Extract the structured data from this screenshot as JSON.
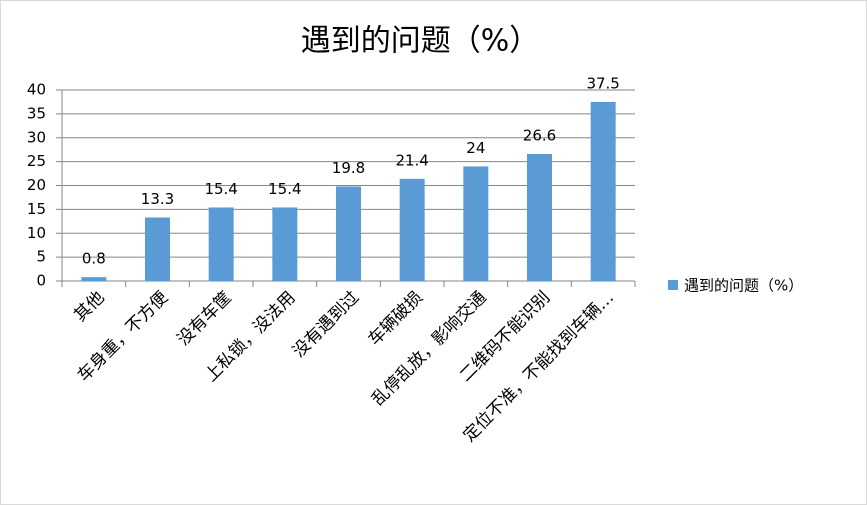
{
  "chart_data": {
    "type": "bar",
    "title": "遇到的问题（%）",
    "categories": [
      "其他",
      "车身重，不方便",
      "没有车筐",
      "上私锁，没法用",
      "没有遇到过",
      "车辆破损",
      "乱停乱放，影响交通",
      "二维码不能识别",
      "定位不准，不能找到车辆…"
    ],
    "series": [
      {
        "name": "遇到的问题（%）",
        "color": "#5b9bd5",
        "values": [
          0.8,
          13.3,
          15.4,
          15.4,
          19.8,
          21.4,
          24,
          26.6,
          37.5
        ]
      }
    ],
    "ylim": [
      0,
      40
    ],
    "yticks": [
      0,
      5,
      10,
      15,
      20,
      25,
      30,
      35,
      40
    ],
    "grid": true,
    "legend": "right"
  }
}
